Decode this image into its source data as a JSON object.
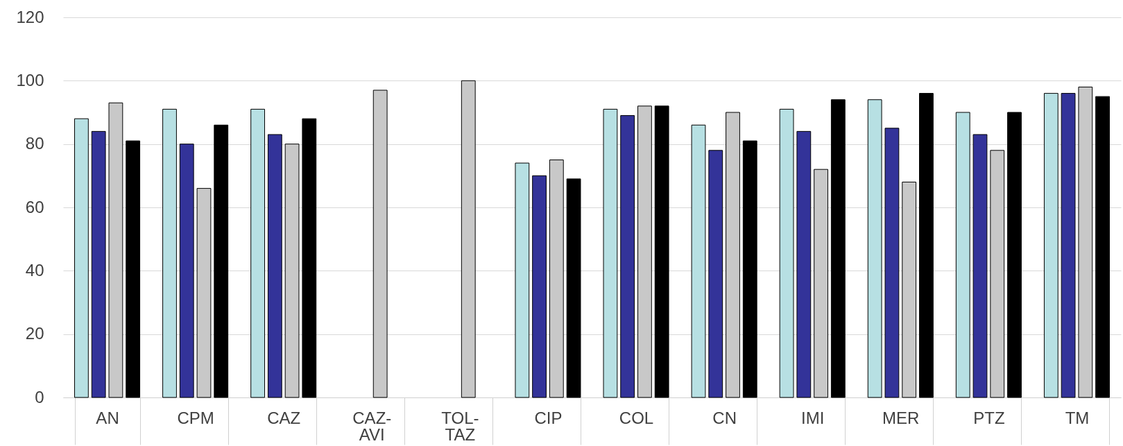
{
  "chart_data": {
    "type": "bar",
    "categories": [
      "AN",
      "CPM",
      "CAZ",
      "CAZ-AVI",
      "TOL-TAZ",
      "CIP",
      "COL",
      "CN",
      "IMI",
      "MER",
      "PTZ",
      "TM"
    ],
    "series": [
      {
        "color": "#b7e0e3",
        "values": [
          88,
          91,
          91,
          null,
          null,
          74,
          91,
          86,
          91,
          94,
          90,
          96
        ]
      },
      {
        "color": "#333399",
        "values": [
          84,
          80,
          83,
          null,
          null,
          70,
          89,
          78,
          84,
          85,
          83,
          96
        ]
      },
      {
        "color": "#c8c8c8",
        "values": [
          93,
          66,
          80,
          97,
          100,
          75,
          92,
          90,
          72,
          68,
          78,
          98
        ]
      },
      {
        "color": "#000000",
        "values": [
          81,
          86,
          88,
          null,
          null,
          69,
          92,
          81,
          94,
          96,
          90,
          95
        ]
      }
    ],
    "ylim": [
      0,
      120
    ],
    "yticks": [
      0,
      20,
      40,
      60,
      80,
      100,
      120
    ],
    "grid": "y",
    "legend": false
  }
}
